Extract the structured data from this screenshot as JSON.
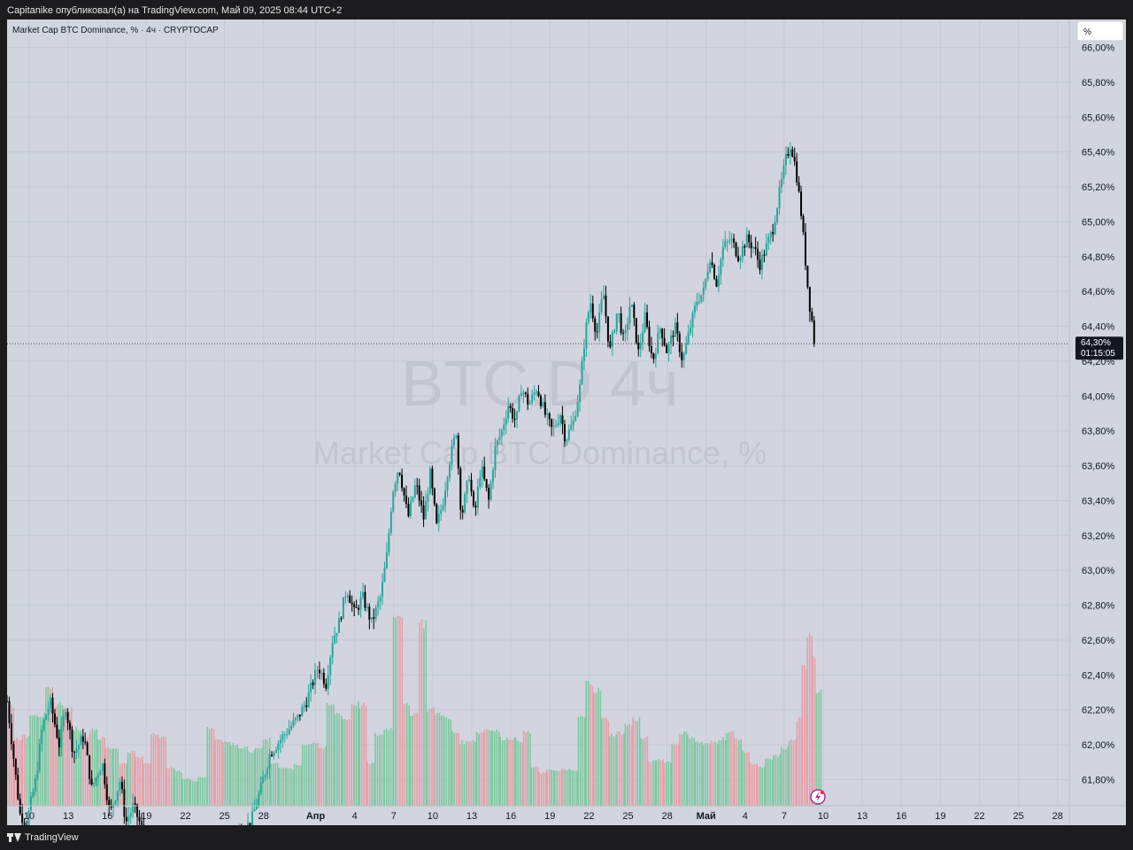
{
  "header": {
    "attribution": "Capitanike опубликовал(а) на TradingView.com, Май 09, 2025 08:44 UTC+2"
  },
  "chart_header": {
    "symbol_title": "Market Cap BTC Dominance, % · 4ч · CRYPTOCAP"
  },
  "scale_button": {
    "label": "%"
  },
  "watermark": {
    "line1": "BTC.D 4ч",
    "line2": "Market Cap BTC Dominance, %"
  },
  "price_label": {
    "value": "64,30%",
    "countdown": "01:15:05"
  },
  "footer": {
    "brand": "TradingView"
  },
  "colors": {
    "up": "#26a69a",
    "down": "#000000",
    "vol_up": "#7fc8a0",
    "vol_down": "#e6a0a8",
    "background": "#d2d5df"
  },
  "chart_data": {
    "type": "candlestick",
    "title": "Market Cap BTC Dominance, %",
    "y_unit": "%",
    "ylim": [
      61.65,
      66.15
    ],
    "yticks": [
      {
        "v": 61.8,
        "label": "61,80%"
      },
      {
        "v": 62.0,
        "label": "62,00%"
      },
      {
        "v": 62.2,
        "label": "62,20%"
      },
      {
        "v": 62.4,
        "label": "62,40%"
      },
      {
        "v": 62.6,
        "label": "62,60%"
      },
      {
        "v": 62.8,
        "label": "62,80%"
      },
      {
        "v": 63.0,
        "label": "63,00%"
      },
      {
        "v": 63.2,
        "label": "63,20%"
      },
      {
        "v": 63.4,
        "label": "63,40%"
      },
      {
        "v": 63.6,
        "label": "63,60%"
      },
      {
        "v": 63.8,
        "label": "63,80%"
      },
      {
        "v": 64.0,
        "label": "64,00%"
      },
      {
        "v": 64.2,
        "label": "64,20%"
      },
      {
        "v": 64.4,
        "label": "64,40%"
      },
      {
        "v": 64.6,
        "label": "64,60%"
      },
      {
        "v": 64.8,
        "label": "64,80%"
      },
      {
        "v": 65.0,
        "label": "65,00%"
      },
      {
        "v": 65.2,
        "label": "65,20%"
      },
      {
        "v": 65.4,
        "label": "65,40%"
      },
      {
        "v": 65.6,
        "label": "65,60%"
      },
      {
        "v": 65.8,
        "label": "65,80%"
      },
      {
        "v": 66.0,
        "label": "66,00%"
      }
    ],
    "xlim": [
      8.3,
      89.9
    ],
    "xticks": [
      {
        "d": 10,
        "label": "10"
      },
      {
        "d": 13,
        "label": "13"
      },
      {
        "d": 16,
        "label": "16"
      },
      {
        "d": 19,
        "label": "19"
      },
      {
        "d": 22,
        "label": "22"
      },
      {
        "d": 25,
        "label": "25"
      },
      {
        "d": 28,
        "label": "28"
      },
      {
        "d": 32,
        "label": "Апр"
      },
      {
        "d": 35,
        "label": "4"
      },
      {
        "d": 38,
        "label": "7"
      },
      {
        "d": 41,
        "label": "10"
      },
      {
        "d": 44,
        "label": "13"
      },
      {
        "d": 47,
        "label": "16"
      },
      {
        "d": 50,
        "label": "19"
      },
      {
        "d": 53,
        "label": "22"
      },
      {
        "d": 56,
        "label": "25"
      },
      {
        "d": 59,
        "label": "28"
      },
      {
        "d": 62,
        "label": "Май"
      },
      {
        "d": 65,
        "label": "4"
      },
      {
        "d": 68,
        "label": "7"
      },
      {
        "d": 71,
        "label": "10"
      },
      {
        "d": 74,
        "label": "13"
      },
      {
        "d": 77,
        "label": "16"
      },
      {
        "d": 80,
        "label": "19"
      },
      {
        "d": 83,
        "label": "22"
      },
      {
        "d": 86,
        "label": "25"
      },
      {
        "d": 89,
        "label": "28"
      }
    ],
    "last_close": 64.3,
    "path_points": [
      [
        8.3,
        62.25
      ],
      [
        9.3,
        61.6
      ],
      [
        9.8,
        61.55
      ],
      [
        10.5,
        61.8
      ],
      [
        11.0,
        62.1
      ],
      [
        11.6,
        62.25
      ],
      [
        12.3,
        62.0
      ],
      [
        12.8,
        62.22
      ],
      [
        13.4,
        61.95
      ],
      [
        14.2,
        62.05
      ],
      [
        14.8,
        61.75
      ],
      [
        15.6,
        61.9
      ],
      [
        16.2,
        61.6
      ],
      [
        17.0,
        61.8
      ],
      [
        17.4,
        61.55
      ],
      [
        18.0,
        61.65
      ],
      [
        19.0,
        61.45
      ],
      [
        20.0,
        61.3
      ],
      [
        21.0,
        61.2
      ],
      [
        22.0,
        61.25
      ],
      [
        23.0,
        61.35
      ],
      [
        24.0,
        61.5
      ],
      [
        25.0,
        61.4
      ],
      [
        26.0,
        61.5
      ],
      [
        27.0,
        61.55
      ],
      [
        27.8,
        61.75
      ],
      [
        28.5,
        61.95
      ],
      [
        29.5,
        62.05
      ],
      [
        30.6,
        62.15
      ],
      [
        31.3,
        62.25
      ],
      [
        32.2,
        62.45
      ],
      [
        32.8,
        62.35
      ],
      [
        33.3,
        62.6
      ],
      [
        33.8,
        62.7
      ],
      [
        34.4,
        62.9
      ],
      [
        35.0,
        62.75
      ],
      [
        35.6,
        62.85
      ],
      [
        36.3,
        62.7
      ],
      [
        37.0,
        62.85
      ],
      [
        37.5,
        63.1
      ],
      [
        37.9,
        63.45
      ],
      [
        38.4,
        63.6
      ],
      [
        39.1,
        63.3
      ],
      [
        39.7,
        63.5
      ],
      [
        40.3,
        63.3
      ],
      [
        40.8,
        63.55
      ],
      [
        41.3,
        63.25
      ],
      [
        41.8,
        63.4
      ],
      [
        42.2,
        63.6
      ],
      [
        42.8,
        63.8
      ],
      [
        43.2,
        63.3
      ],
      [
        43.8,
        63.55
      ],
      [
        44.2,
        63.3
      ],
      [
        44.7,
        63.6
      ],
      [
        45.3,
        63.4
      ],
      [
        45.8,
        63.7
      ],
      [
        46.3,
        63.8
      ],
      [
        46.8,
        63.95
      ],
      [
        47.4,
        63.85
      ],
      [
        47.8,
        64.05
      ],
      [
        48.4,
        63.95
      ],
      [
        49.0,
        64.05
      ],
      [
        49.6,
        63.9
      ],
      [
        50.2,
        63.8
      ],
      [
        50.8,
        63.9
      ],
      [
        51.2,
        63.75
      ],
      [
        51.8,
        63.85
      ],
      [
        52.3,
        64.05
      ],
      [
        52.7,
        64.35
      ],
      [
        53.1,
        64.55
      ],
      [
        53.6,
        64.35
      ],
      [
        54.1,
        64.6
      ],
      [
        54.6,
        64.25
      ],
      [
        55.2,
        64.5
      ],
      [
        55.7,
        64.3
      ],
      [
        56.2,
        64.55
      ],
      [
        56.8,
        64.25
      ],
      [
        57.3,
        64.45
      ],
      [
        57.9,
        64.2
      ],
      [
        58.5,
        64.4
      ],
      [
        59.0,
        64.25
      ],
      [
        59.6,
        64.4
      ],
      [
        60.2,
        64.2
      ],
      [
        60.8,
        64.4
      ],
      [
        61.3,
        64.55
      ],
      [
        61.8,
        64.6
      ],
      [
        62.3,
        64.8
      ],
      [
        62.8,
        64.65
      ],
      [
        63.3,
        64.85
      ],
      [
        63.9,
        64.9
      ],
      [
        64.5,
        64.8
      ],
      [
        65.1,
        64.9
      ],
      [
        65.7,
        64.85
      ],
      [
        66.1,
        64.75
      ],
      [
        66.6,
        64.85
      ],
      [
        67.1,
        64.95
      ],
      [
        67.6,
        65.15
      ],
      [
        68.1,
        65.35
      ],
      [
        68.5,
        65.45
      ],
      [
        68.9,
        65.3
      ],
      [
        69.3,
        65.05
      ],
      [
        69.6,
        64.8
      ],
      [
        69.9,
        64.55
      ],
      [
        70.2,
        64.4
      ],
      [
        70.4,
        64.3
      ]
    ],
    "volume_bars": [
      [
        8.3,
        0.52
      ],
      [
        8.9,
        0.35
      ],
      [
        9.5,
        0.36
      ],
      [
        10.1,
        0.48
      ],
      [
        10.7,
        0.47
      ],
      [
        11.3,
        0.6
      ],
      [
        11.9,
        0.53
      ],
      [
        12.6,
        0.5
      ],
      [
        13.3,
        0.4
      ],
      [
        14.0,
        0.36
      ],
      [
        14.7,
        0.4
      ],
      [
        15.3,
        0.35
      ],
      [
        15.9,
        0.3
      ],
      [
        16.5,
        0.3
      ],
      [
        17.0,
        0.22
      ],
      [
        17.6,
        0.28
      ],
      [
        18.2,
        0.25
      ],
      [
        18.8,
        0.22
      ],
      [
        19.4,
        0.38
      ],
      [
        20.0,
        0.35
      ],
      [
        20.6,
        0.2
      ],
      [
        21.2,
        0.18
      ],
      [
        21.8,
        0.14
      ],
      [
        22.4,
        0.13
      ],
      [
        23.0,
        0.15
      ],
      [
        23.7,
        0.4
      ],
      [
        24.3,
        0.35
      ],
      [
        24.9,
        0.33
      ],
      [
        25.5,
        0.32
      ],
      [
        26.1,
        0.3
      ],
      [
        26.8,
        0.28
      ],
      [
        27.4,
        0.3
      ],
      [
        28.0,
        0.35
      ],
      [
        28.6,
        0.22
      ],
      [
        29.2,
        0.2
      ],
      [
        29.8,
        0.19
      ],
      [
        30.4,
        0.21
      ],
      [
        31.0,
        0.32
      ],
      [
        31.7,
        0.33
      ],
      [
        32.3,
        0.3
      ],
      [
        32.9,
        0.52
      ],
      [
        33.5,
        0.48
      ],
      [
        34.1,
        0.45
      ],
      [
        34.8,
        0.53
      ],
      [
        35.4,
        0.52
      ],
      [
        36.0,
        0.22
      ],
      [
        36.6,
        0.37
      ],
      [
        37.3,
        0.4
      ],
      [
        38.0,
        1.0
      ],
      [
        38.7,
        0.52
      ],
      [
        39.3,
        0.48
      ],
      [
        40.0,
        0.95
      ],
      [
        40.6,
        0.5
      ],
      [
        41.2,
        0.48
      ],
      [
        41.9,
        0.45
      ],
      [
        42.5,
        0.38
      ],
      [
        43.1,
        0.33
      ],
      [
        43.8,
        0.34
      ],
      [
        44.4,
        0.38
      ],
      [
        45.0,
        0.4
      ],
      [
        45.6,
        0.39
      ],
      [
        46.2,
        0.35
      ],
      [
        46.8,
        0.35
      ],
      [
        47.4,
        0.34
      ],
      [
        48.0,
        0.38
      ],
      [
        48.6,
        0.2
      ],
      [
        49.2,
        0.17
      ],
      [
        49.8,
        0.19
      ],
      [
        50.4,
        0.18
      ],
      [
        51.0,
        0.19
      ],
      [
        51.6,
        0.18
      ],
      [
        52.2,
        0.46
      ],
      [
        52.8,
        0.64
      ],
      [
        53.4,
        0.6
      ],
      [
        54.0,
        0.45
      ],
      [
        54.6,
        0.37
      ],
      [
        55.2,
        0.38
      ],
      [
        55.8,
        0.42
      ],
      [
        56.4,
        0.45
      ],
      [
        57.0,
        0.35
      ],
      [
        57.6,
        0.23
      ],
      [
        58.2,
        0.24
      ],
      [
        58.8,
        0.23
      ],
      [
        59.4,
        0.32
      ],
      [
        60.0,
        0.38
      ],
      [
        60.6,
        0.36
      ],
      [
        61.2,
        0.33
      ],
      [
        61.8,
        0.32
      ],
      [
        62.4,
        0.33
      ],
      [
        63.0,
        0.35
      ],
      [
        63.6,
        0.38
      ],
      [
        64.2,
        0.35
      ],
      [
        64.8,
        0.28
      ],
      [
        65.4,
        0.22
      ],
      [
        66.0,
        0.2
      ],
      [
        66.6,
        0.24
      ],
      [
        67.2,
        0.26
      ],
      [
        67.8,
        0.3
      ],
      [
        68.4,
        0.34
      ],
      [
        69.0,
        0.45
      ],
      [
        69.4,
        0.72
      ],
      [
        69.8,
        0.9
      ],
      [
        70.2,
        0.78
      ],
      [
        70.5,
        0.6
      ]
    ]
  }
}
